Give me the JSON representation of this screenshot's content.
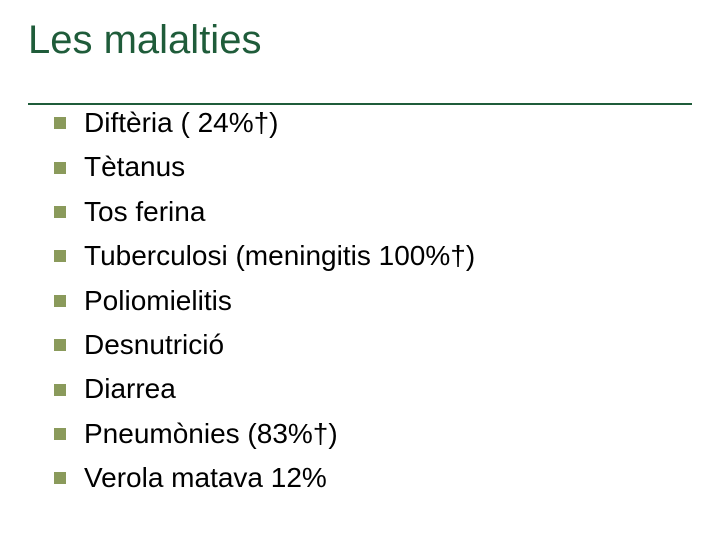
{
  "slide": {
    "title": "Les malalties",
    "title_color": "#1f5c3a",
    "title_fontsize": 40,
    "rule_color": "#1f5c3a",
    "bullet_color": "#8a9a5b",
    "bullet_size": 12,
    "text_color": "#000000",
    "text_fontsize": 28,
    "background_color": "#ffffff",
    "items": [
      "Diftèria ( 24%†)",
      "Tètanus",
      "Tos ferina",
      "Tuberculosi (meningitis 100%†)",
      "Poliomielitis",
      "Desnutrició",
      "Diarrea",
      "Pneumònies (83%†)",
      "Verola matava 12%"
    ]
  }
}
